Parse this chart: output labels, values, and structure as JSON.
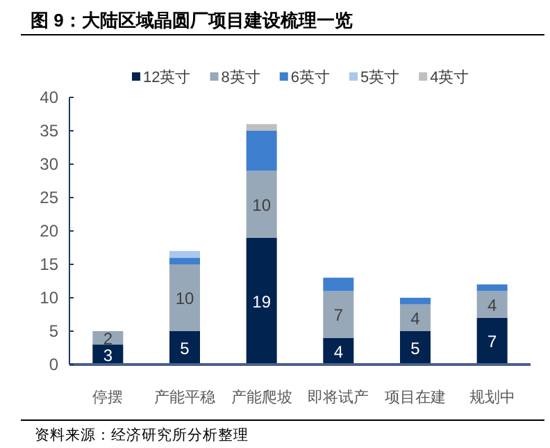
{
  "chart_data": {
    "type": "bar",
    "stacked": true,
    "title": "图 9：大陆区域晶圆厂项目建设梳理一览",
    "categories": [
      "停摆",
      "产能平稳",
      "产能爬坡",
      "即将试产",
      "项目在建",
      "规划中"
    ],
    "series": [
      {
        "name": "12英寸",
        "color": "#002350",
        "values": [
          3,
          5,
          19,
          4,
          5,
          7
        ],
        "value_labels": [
          "3",
          "5",
          "19",
          "4",
          "5",
          "7"
        ]
      },
      {
        "name": "8英寸",
        "color": "#97a8b8",
        "values": [
          2,
          10,
          10,
          7,
          4,
          4
        ],
        "value_labels": [
          "2",
          "10",
          "10",
          "7",
          "4",
          "4"
        ]
      },
      {
        "name": "6英寸",
        "color": "#3f7fd0",
        "values": [
          0,
          1,
          6,
          2,
          1,
          1
        ]
      },
      {
        "name": "5英寸",
        "color": "#a9c8ec",
        "values": [
          0,
          1,
          0,
          0,
          0,
          0
        ]
      },
      {
        "name": "4英寸",
        "color": "#bfbfbf",
        "values": [
          0,
          0,
          1,
          0,
          0,
          0
        ]
      }
    ],
    "ylim": [
      0,
      40
    ],
    "yticks": [
      0,
      5,
      10,
      15,
      20,
      25,
      30,
      35,
      40
    ],
    "grid": false,
    "legend": "top",
    "annotations": [
      "资料来源：经济研究所分析整理"
    ]
  }
}
